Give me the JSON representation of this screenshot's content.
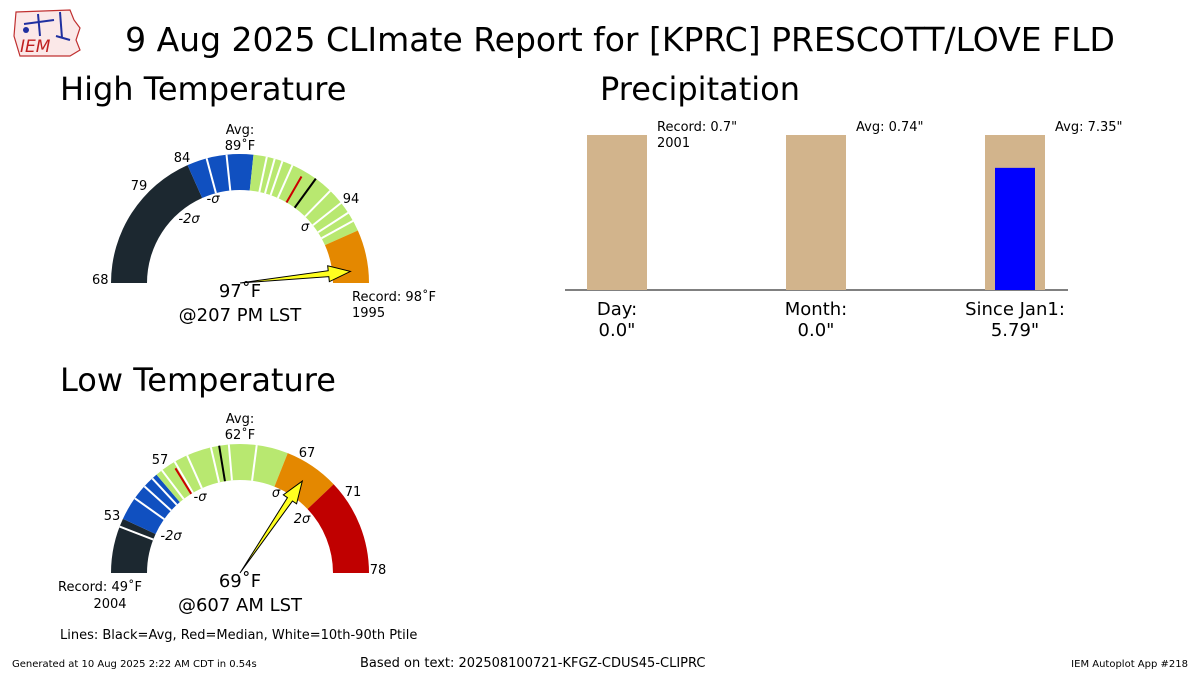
{
  "header": {
    "title": "9 Aug 2025 CLImate Report for [KPRC] PRESCOTT/LOVE FLD",
    "logo_text": "IEM"
  },
  "sections": {
    "high": "High Temperature",
    "precip": "Precipitation",
    "low": "Low Temperature"
  },
  "footer": {
    "lines_legend": "Lines: Black=Avg, Red=Median, White=10th-90th Ptile",
    "generated": "Generated at 10 Aug 2025 2:22 AM CDT in 0.54s",
    "based_on": "Based on text: 202508100721-KFGZ-CDUS45-CLIPRC",
    "app": "IEM Autoplot App #218"
  },
  "colors": {
    "dark": "#1c2830",
    "blue": "#1050c0",
    "green": "#b8e870",
    "orange": "#e48800",
    "red": "#c00000",
    "arrow": "#ffff20",
    "precip_avg": "#d2b48c",
    "precip_obs": "#0000ff"
  },
  "chart_data": [
    {
      "type": "gauge",
      "name": "High Temperature",
      "range": [
        68,
        98
      ],
      "ticks": [
        "68",
        "79",
        "84",
        "94"
      ],
      "sigma_labels": [
        "-2σ",
        "-σ",
        "σ"
      ],
      "avg_label": "Avg:",
      "avg_value_label": "89˚F",
      "avg": 89,
      "median": 88,
      "zones": [
        {
          "from": 68,
          "to": 79,
          "color": "dark"
        },
        {
          "from": 79,
          "to": 84,
          "color": "blue"
        },
        {
          "from": 84,
          "to": 94,
          "color": "green"
        },
        {
          "from": 94,
          "to": 98,
          "color": "orange"
        }
      ],
      "percentile_lines": [
        80.5,
        82,
        85,
        85.6,
        86.2,
        87,
        90.4,
        91.6,
        92.5,
        93.2
      ],
      "observed": 97,
      "observed_label": "97˚F",
      "time_label": "@207 PM LST",
      "record_label": "Record: 98˚F",
      "record_year": "1995"
    },
    {
      "type": "gauge",
      "name": "Low Temperature",
      "range": [
        49,
        78
      ],
      "ticks": [
        "53",
        "57",
        "67",
        "71",
        "78"
      ],
      "sigma_labels": [
        "-2σ",
        "-σ",
        "σ",
        "2σ"
      ],
      "avg_label": "Avg:",
      "avg_value_label": "62˚F",
      "avg": 62,
      "median": 58.4,
      "zones": [
        {
          "from": 49,
          "to": 53,
          "color": "dark"
        },
        {
          "from": 53,
          "to": 57,
          "color": "blue"
        },
        {
          "from": 57,
          "to": 67,
          "color": "green"
        },
        {
          "from": 67,
          "to": 71,
          "color": "orange"
        },
        {
          "from": 71,
          "to": 78,
          "color": "red"
        }
      ],
      "percentile_lines": [
        52.4,
        54.7,
        55.8,
        56.6,
        57.5,
        58.6,
        59.6,
        61.4,
        62.7,
        64.7
      ],
      "observed": 69,
      "observed_label": "69˚F",
      "time_label": "@607 AM LST",
      "record_label": "Record: 49˚F",
      "record_year": "2004"
    },
    {
      "type": "bar",
      "name": "Precipitation",
      "categories": [
        "Day:",
        "Month:",
        "Since Jan1:"
      ],
      "observed_labels": [
        "0.0\"",
        "0.0\"",
        "5.79\""
      ],
      "observed": [
        0.0,
        0.0,
        5.79
      ],
      "average_labels": [
        "Record: 0.7\"",
        "Avg: 0.74\"",
        "Avg: 7.35\""
      ],
      "record_year": "2001",
      "bar_fill_fraction_of_avg": [
        1.0,
        1.0,
        1.0
      ],
      "observed_fraction_of_avg": [
        0.0,
        0.0,
        0.788
      ]
    }
  ]
}
